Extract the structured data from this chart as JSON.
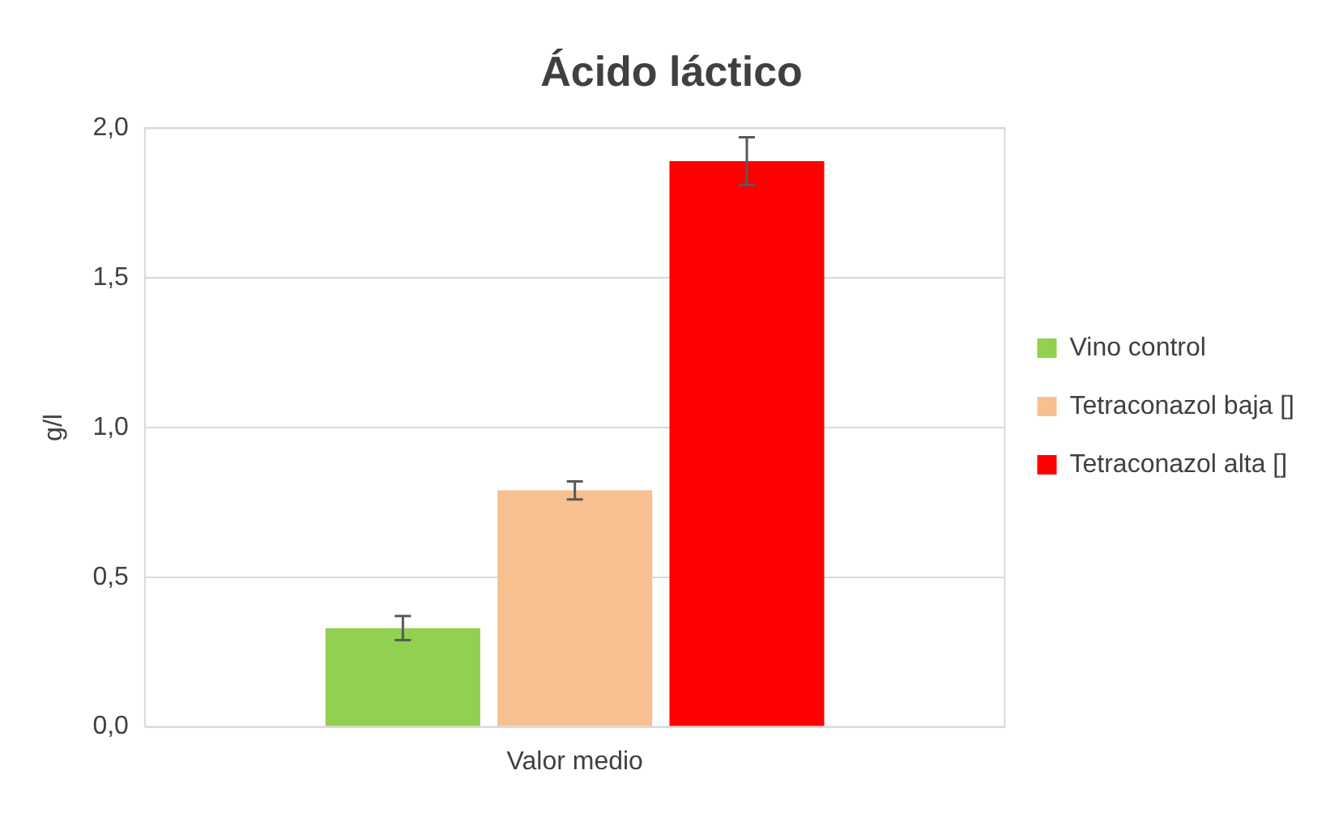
{
  "chart_data": {
    "type": "bar",
    "title": "Ácido láctico",
    "ylabel": "g/l",
    "categories": [
      "Valor medio"
    ],
    "series": [
      {
        "name": "Vino control",
        "color": "#92d050",
        "values": [
          0.33
        ],
        "errors": [
          0.04
        ]
      },
      {
        "name": "Tetraconazol baja []",
        "color": "#f8c090",
        "values": [
          0.79
        ],
        "errors": [
          0.03
        ]
      },
      {
        "name": "Tetraconazol alta []",
        "color": "#ff0000",
        "values": [
          1.89
        ],
        "errors": [
          0.08
        ]
      }
    ],
    "ylim": [
      0,
      2
    ],
    "yticks": [
      {
        "value": 0,
        "label": "0,0"
      },
      {
        "value": 0.5,
        "label": "0,5"
      },
      {
        "value": 1,
        "label": "1,0"
      },
      {
        "value": 1.5,
        "label": "1,5"
      },
      {
        "value": 2,
        "label": "2,0"
      }
    ],
    "grid": "y",
    "legend": "right"
  }
}
